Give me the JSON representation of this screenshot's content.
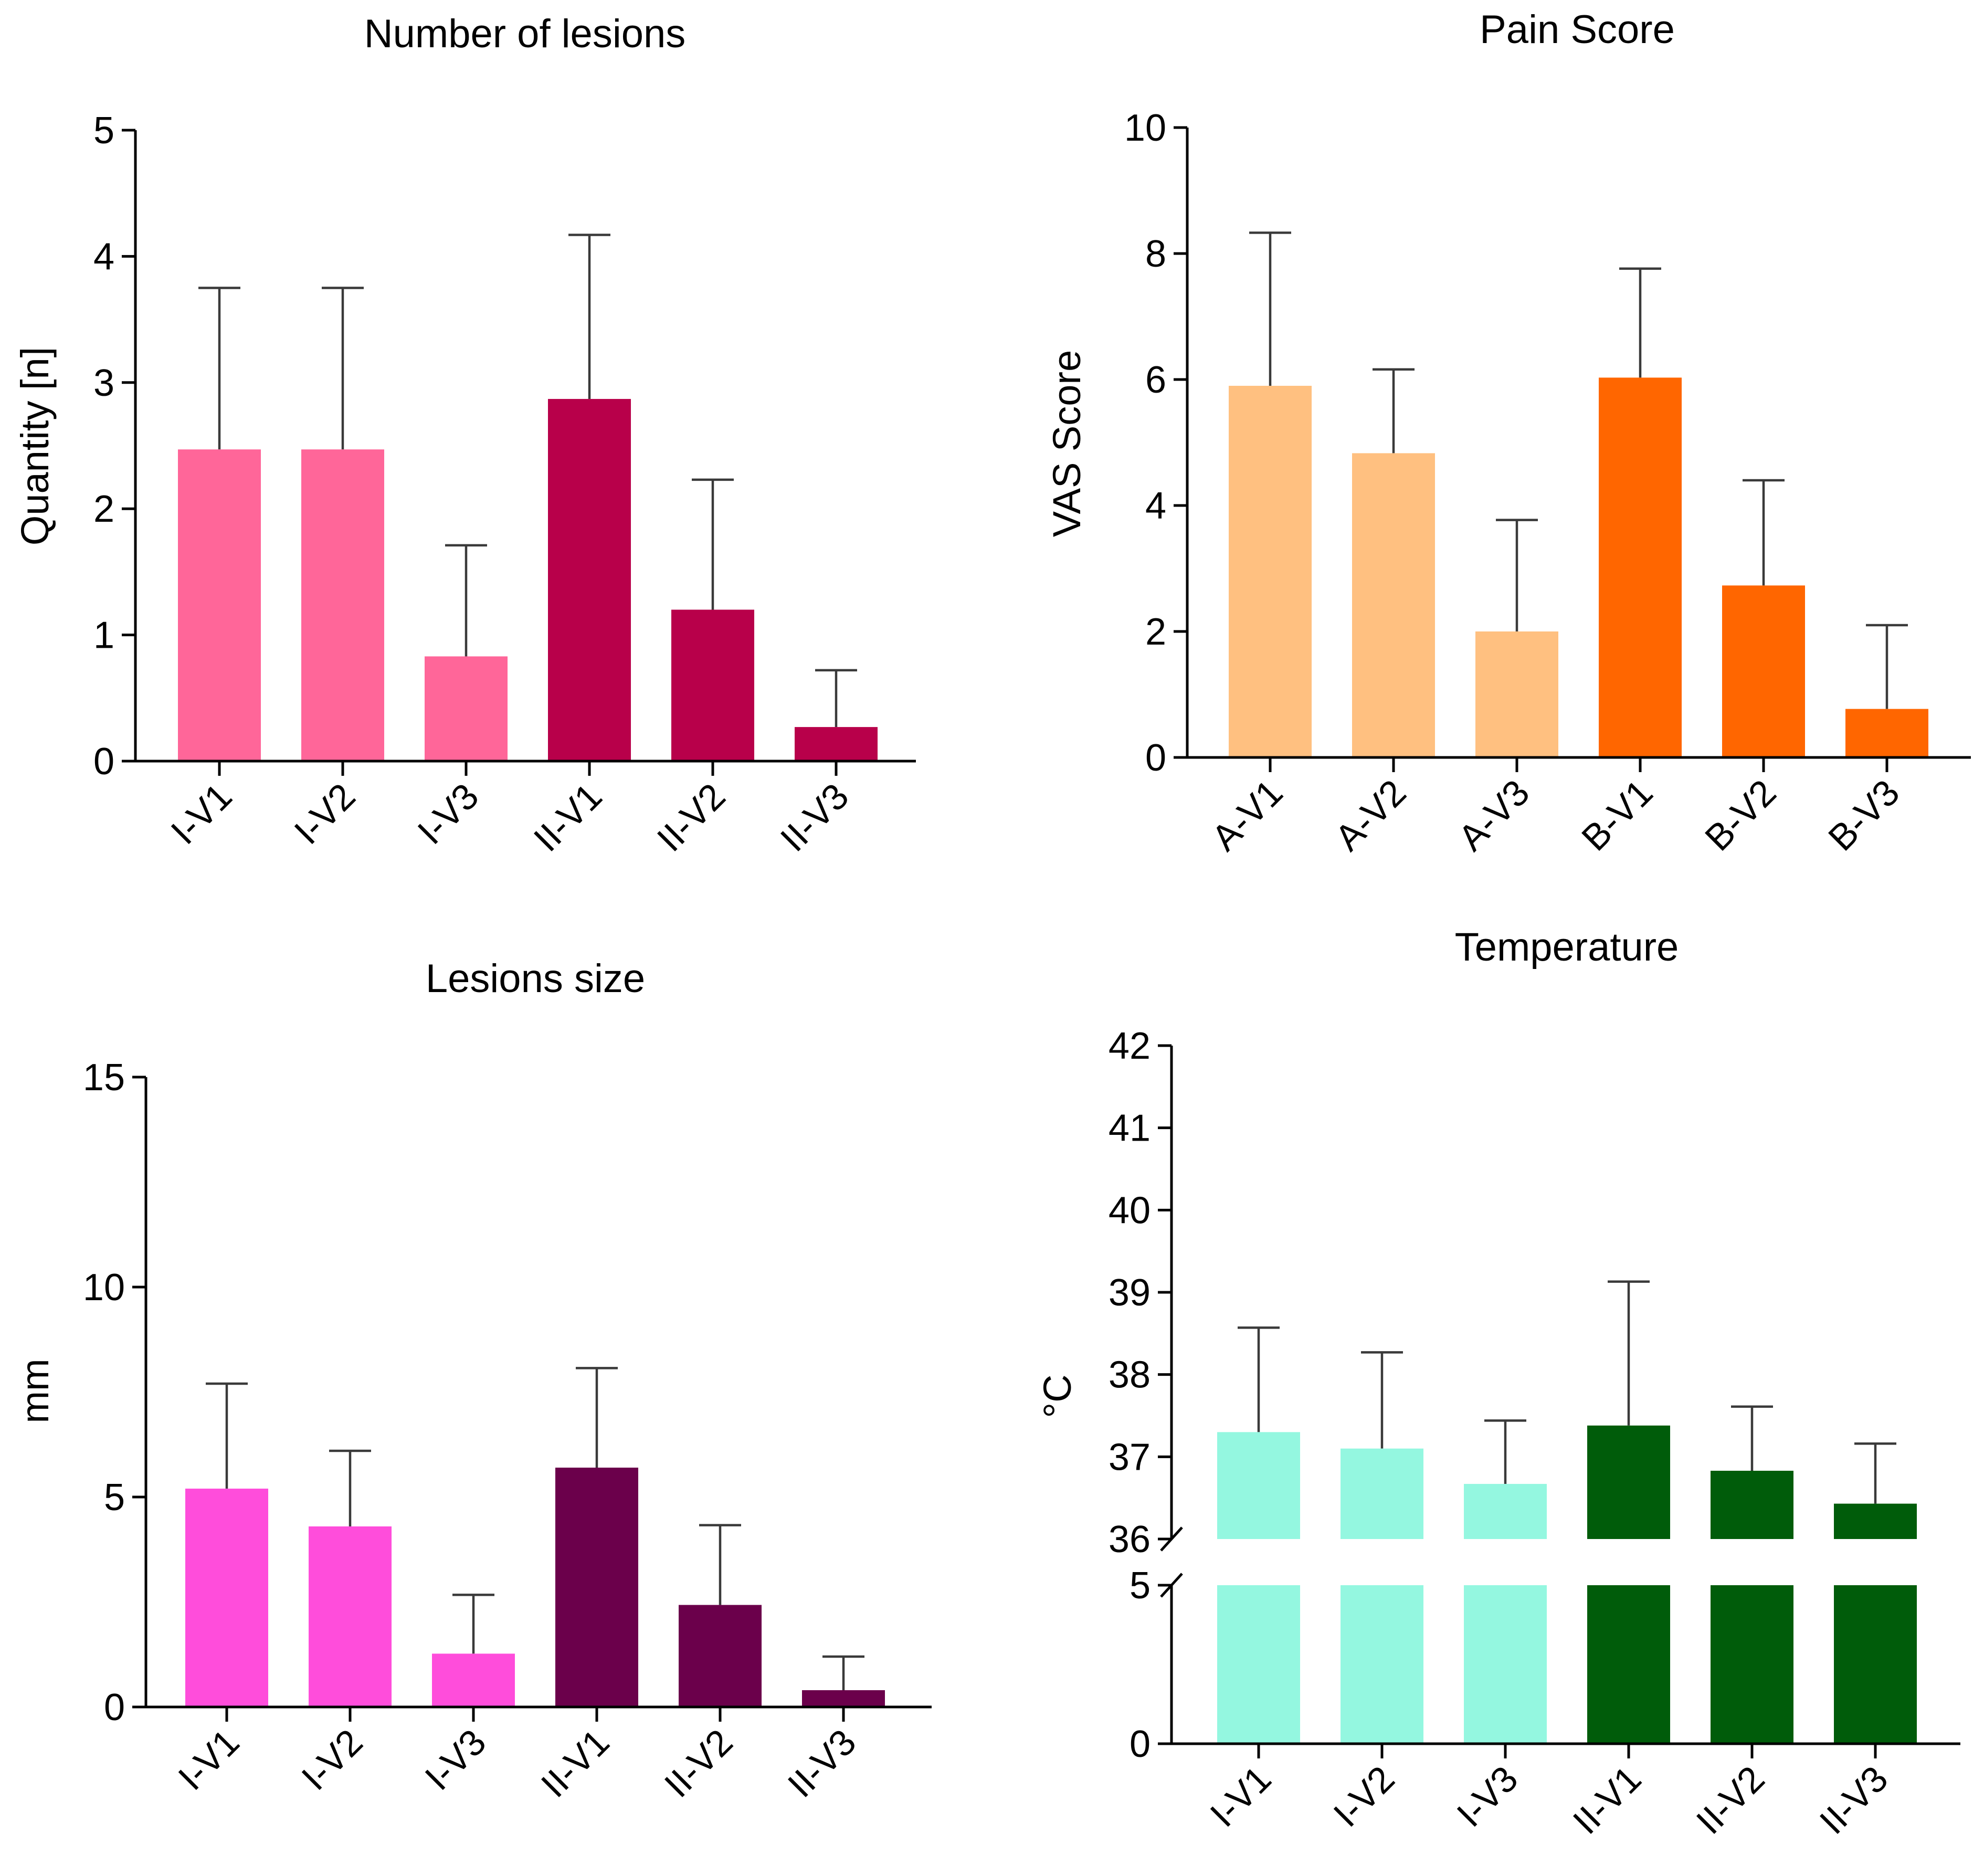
{
  "chart_data": [
    {
      "id": "lesions-count",
      "type": "bar",
      "title": "Number of lesions",
      "ylabel": "Quantity [n]",
      "ylim": [
        0,
        5
      ],
      "yticks": [
        0,
        1,
        2,
        3,
        4,
        5
      ],
      "categories": [
        "I-V1",
        "I-V2",
        "I-V3",
        "II-V1",
        "II-V2",
        "II-V3"
      ],
      "values": [
        2.47,
        2.47,
        0.83,
        2.87,
        1.2,
        0.27
      ],
      "errors": [
        1.28,
        1.28,
        0.88,
        1.3,
        1.03,
        0.45
      ],
      "colors": [
        "#ff6699",
        "#ff6699",
        "#ff6699",
        "#b8004a",
        "#b8004a",
        "#b8004a"
      ]
    },
    {
      "id": "pain-score",
      "type": "bar",
      "title": "Pain Score",
      "ylabel": "VAS Score",
      "ylim": [
        0,
        10
      ],
      "yticks": [
        0,
        2,
        4,
        6,
        8,
        10
      ],
      "categories": [
        "A-V1",
        "A-V2",
        "A-V3",
        "B-V1",
        "B-V2",
        "B-V3"
      ],
      "values": [
        5.9,
        4.83,
        2.0,
        6.03,
        2.73,
        0.77
      ],
      "errors": [
        2.43,
        1.33,
        1.77,
        1.73,
        1.67,
        1.33
      ],
      "colors": [
        "#ffc080",
        "#ffc080",
        "#ffc080",
        "#ff6600",
        "#ff6600",
        "#ff6600"
      ]
    },
    {
      "id": "lesions-size",
      "type": "bar",
      "title": "Lesions size",
      "ylabel": "mm",
      "ylim": [
        0,
        15
      ],
      "yticks": [
        0,
        5,
        10,
        15
      ],
      "categories": [
        "I-V1",
        "I-V2",
        "I-V3",
        "II-V1",
        "II-V2",
        "II-V3"
      ],
      "values": [
        5.2,
        4.3,
        1.27,
        5.7,
        2.43,
        0.4
      ],
      "errors": [
        2.5,
        1.8,
        1.4,
        2.37,
        1.9,
        0.8
      ],
      "colors": [
        "#ff4ddb",
        "#ff4ddb",
        "#ff4ddb",
        "#6b004b",
        "#6b004b",
        "#6b004b"
      ]
    },
    {
      "id": "temperature",
      "type": "bar",
      "title": "Temperature",
      "ylabel": "°C",
      "axis_break": true,
      "lower_segment": {
        "ylim": [
          0,
          5
        ],
        "yticks": [
          0,
          5
        ]
      },
      "upper_segment": {
        "ylim": [
          36,
          42
        ],
        "yticks": [
          36,
          37,
          38,
          39,
          40,
          41,
          42
        ]
      },
      "categories": [
        "I-V1",
        "I-V2",
        "I-V3",
        "II-V1",
        "II-V2",
        "II-V3"
      ],
      "values": [
        37.3,
        37.1,
        36.67,
        37.38,
        36.83,
        36.43
      ],
      "errors": [
        1.27,
        1.17,
        0.77,
        1.75,
        0.78,
        0.73
      ],
      "colors": [
        "#94f7e0",
        "#94f7e0",
        "#94f7e0",
        "#005c0a",
        "#005c0a",
        "#005c0a"
      ]
    }
  ]
}
